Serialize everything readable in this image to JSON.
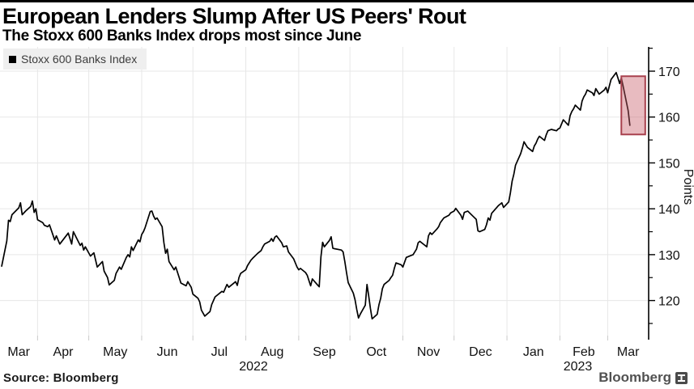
{
  "header": {
    "title": "European Lenders Slump After US Peers' Rout",
    "subtitle": "The Stoxx 600 Banks Index drops most since June"
  },
  "legend": {
    "label": "Stoxx 600 Banks Index",
    "swatch_color": "#000000"
  },
  "footer": {
    "source": "Source: Bloomberg",
    "logo_text": "Bloomberg"
  },
  "colors": {
    "line": "#000000",
    "grid": "#e7e7e7",
    "axis": "#000000",
    "legend_bg": "#efefef",
    "highlight_fill": "#c95d69",
    "highlight_border": "#a8414e"
  },
  "chart_data": {
    "type": "line",
    "title": "European Lenders Slump After US Peers' Rout",
    "subtitle": "The Stoxx 600 Banks Index drops most since June",
    "xlabel": "",
    "ylabel": "Points",
    "grid": true,
    "legend_position": "top-left",
    "x_range": [
      "2022-03-10",
      "2023-03-25"
    ],
    "ylim": [
      112,
      175.5
    ],
    "y_ticks": [
      120,
      130,
      140,
      150,
      160,
      170
    ],
    "y_minor_ticks": [
      115,
      125,
      135,
      145,
      155,
      165,
      175
    ],
    "months": [
      {
        "label": "Mar",
        "start": "2022-03-01"
      },
      {
        "label": "Apr",
        "start": "2022-04-01"
      },
      {
        "label": "May",
        "start": "2022-05-01"
      },
      {
        "label": "Jun",
        "start": "2022-06-01"
      },
      {
        "label": "Jul",
        "start": "2022-07-01"
      },
      {
        "label": "Aug",
        "start": "2022-08-01"
      },
      {
        "label": "Sep",
        "start": "2022-09-01"
      },
      {
        "label": "Oct",
        "start": "2022-10-01"
      },
      {
        "label": "Nov",
        "start": "2022-11-01"
      },
      {
        "label": "Dec",
        "start": "2022-12-01"
      },
      {
        "label": "Jan",
        "start": "2023-01-01"
      },
      {
        "label": "Feb",
        "start": "2023-02-01"
      },
      {
        "label": "Mar",
        "start": "2023-03-01"
      }
    ],
    "years": [
      {
        "label": "2022",
        "from": "2022-03-10",
        "to": "2023-01-01"
      },
      {
        "label": "2023",
        "from": "2023-01-01",
        "to": "2023-03-25"
      }
    ],
    "highlight": {
      "from": "2023-03-09",
      "to": "2023-03-23",
      "value_min": 156.2,
      "value_max": 168.9,
      "fill": "#c95d69",
      "fill_opacity": 0.42,
      "stroke": "#a8414e"
    },
    "series": [
      {
        "name": "Stoxx 600 Banks Index",
        "color": "#000000",
        "points": [
          [
            "2022-03-11",
            127.5
          ],
          [
            "2022-03-14",
            133.0
          ],
          [
            "2022-03-15",
            137.5
          ],
          [
            "2022-03-16",
            137.2
          ],
          [
            "2022-03-17",
            138.7
          ],
          [
            "2022-03-21",
            140.2
          ],
          [
            "2022-03-22",
            141.3
          ],
          [
            "2022-03-23",
            138.7
          ],
          [
            "2022-03-25",
            139.5
          ],
          [
            "2022-03-28",
            140.5
          ],
          [
            "2022-03-29",
            141.7
          ],
          [
            "2022-03-30",
            139.2
          ],
          [
            "2022-03-31",
            140.0
          ],
          [
            "2022-04-01",
            137.6
          ],
          [
            "2022-04-04",
            137.0
          ],
          [
            "2022-04-05",
            136.4
          ],
          [
            "2022-04-07",
            136.1
          ],
          [
            "2022-04-08",
            136.5
          ],
          [
            "2022-04-11",
            133.2
          ],
          [
            "2022-04-12",
            134.1
          ],
          [
            "2022-04-14",
            132.3
          ],
          [
            "2022-04-19",
            134.7
          ],
          [
            "2022-04-21",
            132.3
          ],
          [
            "2022-04-22",
            135.0
          ],
          [
            "2022-04-26",
            132.0
          ],
          [
            "2022-04-27",
            132.5
          ],
          [
            "2022-04-28",
            131.0
          ],
          [
            "2022-04-29",
            131.7
          ],
          [
            "2022-05-02",
            129.7
          ],
          [
            "2022-05-04",
            130.4
          ],
          [
            "2022-05-06",
            127.3
          ],
          [
            "2022-05-09",
            128.5
          ],
          [
            "2022-05-10",
            126.4
          ],
          [
            "2022-05-12",
            125.0
          ],
          [
            "2022-05-13",
            123.4
          ],
          [
            "2022-05-16",
            124.4
          ],
          [
            "2022-05-17",
            125.9
          ],
          [
            "2022-05-19",
            127.3
          ],
          [
            "2022-05-20",
            126.8
          ],
          [
            "2022-05-23",
            129.4
          ],
          [
            "2022-05-24",
            130.0
          ],
          [
            "2022-05-25",
            129.5
          ],
          [
            "2022-05-26",
            131.7
          ],
          [
            "2022-05-27",
            130.9
          ],
          [
            "2022-05-30",
            133.2
          ],
          [
            "2022-05-31",
            132.8
          ],
          [
            "2022-06-01",
            134.4
          ],
          [
            "2022-06-02",
            135.0
          ],
          [
            "2022-06-03",
            135.9
          ],
          [
            "2022-06-06",
            139.4
          ],
          [
            "2022-06-07",
            139.5
          ],
          [
            "2022-06-08",
            138.4
          ],
          [
            "2022-06-09",
            137.7
          ],
          [
            "2022-06-10",
            138.0
          ],
          [
            "2022-06-13",
            136.1
          ],
          [
            "2022-06-14",
            132.6
          ],
          [
            "2022-06-15",
            130.3
          ],
          [
            "2022-06-16",
            131.2
          ],
          [
            "2022-06-17",
            128.5
          ],
          [
            "2022-06-20",
            126.7
          ],
          [
            "2022-06-21",
            127.3
          ],
          [
            "2022-06-23",
            125.0
          ],
          [
            "2022-06-24",
            123.8
          ],
          [
            "2022-06-27",
            123.2
          ],
          [
            "2022-06-28",
            124.1
          ],
          [
            "2022-06-30",
            122.9
          ],
          [
            "2022-07-01",
            121.4
          ],
          [
            "2022-07-04",
            120.5
          ],
          [
            "2022-07-05",
            119.7
          ],
          [
            "2022-07-06",
            117.9
          ],
          [
            "2022-07-08",
            116.6
          ],
          [
            "2022-07-11",
            117.6
          ],
          [
            "2022-07-12",
            119.1
          ],
          [
            "2022-07-14",
            120.8
          ],
          [
            "2022-07-18",
            122.0
          ],
          [
            "2022-07-19",
            121.8
          ],
          [
            "2022-07-21",
            123.5
          ],
          [
            "2022-07-22",
            122.9
          ],
          [
            "2022-07-26",
            124.1
          ],
          [
            "2022-07-27",
            123.3
          ],
          [
            "2022-07-28",
            125.0
          ],
          [
            "2022-07-29",
            125.9
          ],
          [
            "2022-08-01",
            126.7
          ],
          [
            "2022-08-02",
            127.6
          ],
          [
            "2022-08-04",
            128.8
          ],
          [
            "2022-08-05",
            129.2
          ],
          [
            "2022-08-08",
            130.3
          ],
          [
            "2022-08-10",
            130.9
          ],
          [
            "2022-08-11",
            131.7
          ],
          [
            "2022-08-12",
            132.3
          ],
          [
            "2022-08-15",
            132.9
          ],
          [
            "2022-08-16",
            133.5
          ],
          [
            "2022-08-17",
            132.9
          ],
          [
            "2022-08-18",
            133.8
          ],
          [
            "2022-08-19",
            134.1
          ],
          [
            "2022-08-22",
            132.6
          ],
          [
            "2022-08-23",
            131.7
          ],
          [
            "2022-08-25",
            131.9
          ],
          [
            "2022-08-26",
            130.6
          ],
          [
            "2022-08-29",
            129.1
          ],
          [
            "2022-08-30",
            128.2
          ],
          [
            "2022-08-31",
            127.3
          ],
          [
            "2022-09-01",
            126.7
          ],
          [
            "2022-09-02",
            127.0
          ],
          [
            "2022-09-05",
            126.1
          ],
          [
            "2022-09-06",
            125.5
          ],
          [
            "2022-09-08",
            123.2
          ],
          [
            "2022-09-09",
            124.7
          ],
          [
            "2022-09-12",
            123.4
          ],
          [
            "2022-09-13",
            123.0
          ],
          [
            "2022-09-14",
            129.5
          ],
          [
            "2022-09-15",
            132.7
          ],
          [
            "2022-09-16",
            131.7
          ],
          [
            "2022-09-19",
            133.1
          ],
          [
            "2022-09-20",
            133.9
          ],
          [
            "2022-09-21",
            131.4
          ],
          [
            "2022-09-22",
            131.3
          ],
          [
            "2022-09-26",
            131.0
          ],
          [
            "2022-09-27",
            130.6
          ],
          [
            "2022-09-28",
            128.5
          ],
          [
            "2022-09-29",
            126.1
          ],
          [
            "2022-09-30",
            123.9
          ],
          [
            "2022-10-03",
            121.6
          ],
          [
            "2022-10-04",
            120.2
          ],
          [
            "2022-10-05",
            118.1
          ],
          [
            "2022-10-06",
            116.2
          ],
          [
            "2022-10-07",
            117.0
          ],
          [
            "2022-10-10",
            119.0
          ],
          [
            "2022-10-11",
            123.5
          ],
          [
            "2022-10-12",
            121.0
          ],
          [
            "2022-10-13",
            118.3
          ],
          [
            "2022-10-14",
            116.0
          ],
          [
            "2022-10-17",
            117.0
          ],
          [
            "2022-10-18",
            119.1
          ],
          [
            "2022-10-19",
            120.5
          ],
          [
            "2022-10-20",
            122.6
          ],
          [
            "2022-10-21",
            123.5
          ],
          [
            "2022-10-24",
            124.4
          ],
          [
            "2022-10-25",
            125.0
          ],
          [
            "2022-10-26",
            125.5
          ],
          [
            "2022-10-27",
            127.0
          ],
          [
            "2022-10-28",
            128.2
          ],
          [
            "2022-10-31",
            127.8
          ],
          [
            "2022-11-01",
            127.3
          ],
          [
            "2022-11-03",
            129.4
          ],
          [
            "2022-11-07",
            130.0
          ],
          [
            "2022-11-09",
            131.2
          ],
          [
            "2022-11-10",
            132.6
          ],
          [
            "2022-11-11",
            132.9
          ],
          [
            "2022-11-14",
            132.0
          ],
          [
            "2022-11-15",
            131.7
          ],
          [
            "2022-11-16",
            134.1
          ],
          [
            "2022-11-17",
            134.8
          ],
          [
            "2022-11-18",
            134.4
          ],
          [
            "2022-11-21",
            135.6
          ],
          [
            "2022-11-22",
            136.1
          ],
          [
            "2022-11-23",
            137.0
          ],
          [
            "2022-11-25",
            138.0
          ],
          [
            "2022-11-28",
            138.6
          ],
          [
            "2022-11-29",
            139.1
          ],
          [
            "2022-12-01",
            139.5
          ],
          [
            "2022-12-02",
            140.1
          ],
          [
            "2022-12-05",
            138.6
          ],
          [
            "2022-12-06",
            137.7
          ],
          [
            "2022-12-07",
            139.2
          ],
          [
            "2022-12-09",
            139.5
          ],
          [
            "2022-12-12",
            138.4
          ],
          [
            "2022-12-14",
            137.7
          ],
          [
            "2022-12-15",
            135.2
          ],
          [
            "2022-12-16",
            135.0
          ],
          [
            "2022-12-19",
            135.5
          ],
          [
            "2022-12-20",
            136.5
          ],
          [
            "2022-12-21",
            138.0
          ],
          [
            "2022-12-22",
            137.5
          ],
          [
            "2022-12-23",
            139.0
          ],
          [
            "2022-12-27",
            140.7
          ],
          [
            "2022-12-28",
            141.0
          ],
          [
            "2022-12-29",
            141.3
          ],
          [
            "2022-12-30",
            140.3
          ],
          [
            "2023-01-02",
            141.5
          ],
          [
            "2023-01-03",
            143.5
          ],
          [
            "2023-01-04",
            146.0
          ],
          [
            "2023-01-05",
            147.5
          ],
          [
            "2023-01-06",
            149.5
          ],
          [
            "2023-01-09",
            152.0
          ],
          [
            "2023-01-10",
            153.2
          ],
          [
            "2023-01-11",
            154.6
          ],
          [
            "2023-01-12",
            154.0
          ],
          [
            "2023-01-13",
            153.4
          ],
          [
            "2023-01-16",
            152.5
          ],
          [
            "2023-01-17",
            153.7
          ],
          [
            "2023-01-18",
            154.3
          ],
          [
            "2023-01-19",
            155.2
          ],
          [
            "2023-01-20",
            155.8
          ],
          [
            "2023-01-23",
            154.9
          ],
          [
            "2023-01-24",
            156.1
          ],
          [
            "2023-01-25",
            157.0
          ],
          [
            "2023-01-27",
            157.3
          ],
          [
            "2023-01-30",
            157.0
          ],
          [
            "2023-01-31",
            157.4
          ],
          [
            "2023-02-01",
            157.6
          ],
          [
            "2023-02-02",
            158.5
          ],
          [
            "2023-02-03",
            159.4
          ],
          [
            "2023-02-06",
            158.2
          ],
          [
            "2023-02-07",
            160.3
          ],
          [
            "2023-02-08",
            161.2
          ],
          [
            "2023-02-09",
            161.8
          ],
          [
            "2023-02-10",
            162.6
          ],
          [
            "2023-02-13",
            161.5
          ],
          [
            "2023-02-14",
            163.5
          ],
          [
            "2023-02-15",
            164.4
          ],
          [
            "2023-02-16",
            165.0
          ],
          [
            "2023-02-17",
            165.9
          ],
          [
            "2023-02-20",
            165.3
          ],
          [
            "2023-02-21",
            164.7
          ],
          [
            "2023-02-22",
            166.2
          ],
          [
            "2023-02-23",
            165.6
          ],
          [
            "2023-02-24",
            165.0
          ],
          [
            "2023-02-27",
            165.9
          ],
          [
            "2023-02-28",
            166.5
          ],
          [
            "2023-03-01",
            165.3
          ],
          [
            "2023-03-02",
            166.8
          ],
          [
            "2023-03-03",
            168.2
          ],
          [
            "2023-03-06",
            169.7
          ],
          [
            "2023-03-07",
            168.5
          ],
          [
            "2023-03-08",
            167.3
          ],
          [
            "2023-03-09",
            168.5
          ],
          [
            "2023-03-10",
            166.8
          ],
          [
            "2023-03-13",
            161.4
          ],
          [
            "2023-03-14",
            158.2
          ]
        ]
      }
    ]
  }
}
